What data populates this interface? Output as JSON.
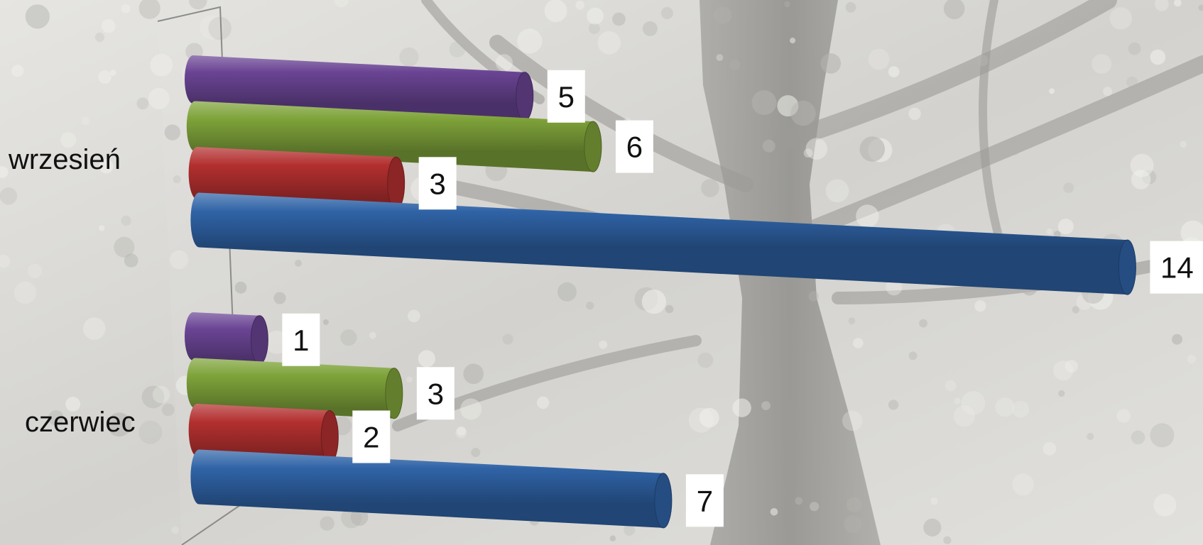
{
  "chart_data": {
    "type": "bar",
    "orientation": "horizontal",
    "style": "3d-cylinder",
    "categories": [
      "czerwiec",
      "wrzesień"
    ],
    "series": [
      {
        "color": "#2f63a6",
        "values": [
          7,
          14
        ]
      },
      {
        "color": "#b32f2f",
        "values": [
          2,
          3
        ]
      },
      {
        "color": "#7fa33a",
        "values": [
          3,
          6
        ]
      },
      {
        "color": "#6a4494",
        "values": [
          1,
          5
        ]
      }
    ],
    "title": "",
    "xlabel": "",
    "ylabel": "",
    "xlim": [
      0,
      14
    ],
    "grid": false,
    "legend": "none",
    "data_labels": true,
    "background": "grayscale tree photograph"
  }
}
